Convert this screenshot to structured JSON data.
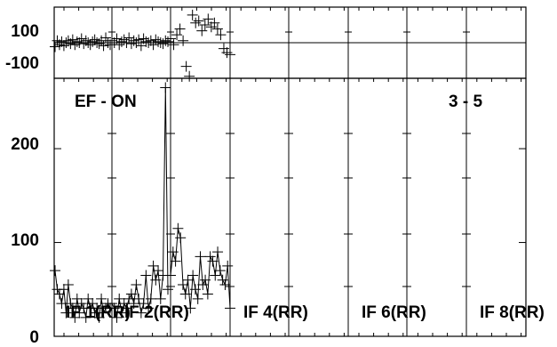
{
  "chart_data": [
    {
      "type": "scatter",
      "panel": "phase",
      "title": "",
      "xlabel": "",
      "ylabel": "",
      "ylim": [
        -180,
        180
      ],
      "yticks": [
        100,
        -100
      ],
      "ytick_labels": [
        "100",
        "-100"
      ],
      "reference_line": 0,
      "grid": true,
      "series": [
        {
          "segment": 1,
          "y": [
            -20,
            10,
            -10,
            5,
            -15,
            0,
            10,
            -5,
            15,
            -10,
            5,
            0,
            20,
            -5,
            10,
            0,
            -10,
            5,
            15,
            0,
            -5,
            10,
            -15,
            25,
            0,
            -10
          ]
        },
        {
          "segment": 2,
          "y": [
            10,
            0,
            20,
            -10,
            5,
            15,
            0,
            25,
            -5,
            10,
            0,
            15,
            -15,
            20,
            5,
            0,
            10,
            -10,
            15,
            5,
            0,
            -5,
            10,
            5
          ]
        },
        {
          "segment": 3,
          "y": [
            20,
            -10,
            40,
            70,
            10,
            -120,
            -170,
            140,
            100,
            110,
            60,
            90,
            120,
            80,
            100,
            70,
            40,
            -30,
            -50,
            -60
          ]
        }
      ]
    },
    {
      "type": "line",
      "panel": "amplitude",
      "title": "",
      "xlabel": "",
      "ylabel": "",
      "ylim": [
        0,
        275
      ],
      "yticks": [
        0,
        100,
        200
      ],
      "ytick_labels": [
        "0",
        "100",
        "200"
      ],
      "annotations": [
        "EF - ON",
        "3 - 5"
      ],
      "grid": true,
      "series": [
        {
          "segment": 1,
          "y": [
            70,
            50,
            45,
            35,
            50,
            25,
            55,
            35,
            30,
            20,
            40,
            25,
            35,
            30,
            20,
            40,
            30,
            35,
            25,
            30,
            20,
            40,
            25,
            30,
            35,
            30
          ]
        },
        {
          "segment": 2,
          "y": [
            35,
            30,
            20,
            40,
            25,
            35,
            30,
            40,
            45,
            35,
            55,
            40,
            25,
            35,
            65,
            30,
            40,
            75,
            60,
            70,
            40,
            65,
            265,
            50
          ]
        },
        {
          "segment": 3,
          "y": [
            65,
            90,
            80,
            115,
            105,
            55,
            45,
            60,
            30,
            65,
            50,
            40,
            85,
            55,
            60,
            45,
            85,
            80,
            65,
            90,
            70,
            60,
            55,
            75,
            30
          ]
        }
      ],
      "if_labels": [
        "IF 1(RR)",
        "IF 2(RR)",
        "IF 4(RR)",
        "IF 6(RR)",
        "IF 8(RR)"
      ]
    }
  ]
}
